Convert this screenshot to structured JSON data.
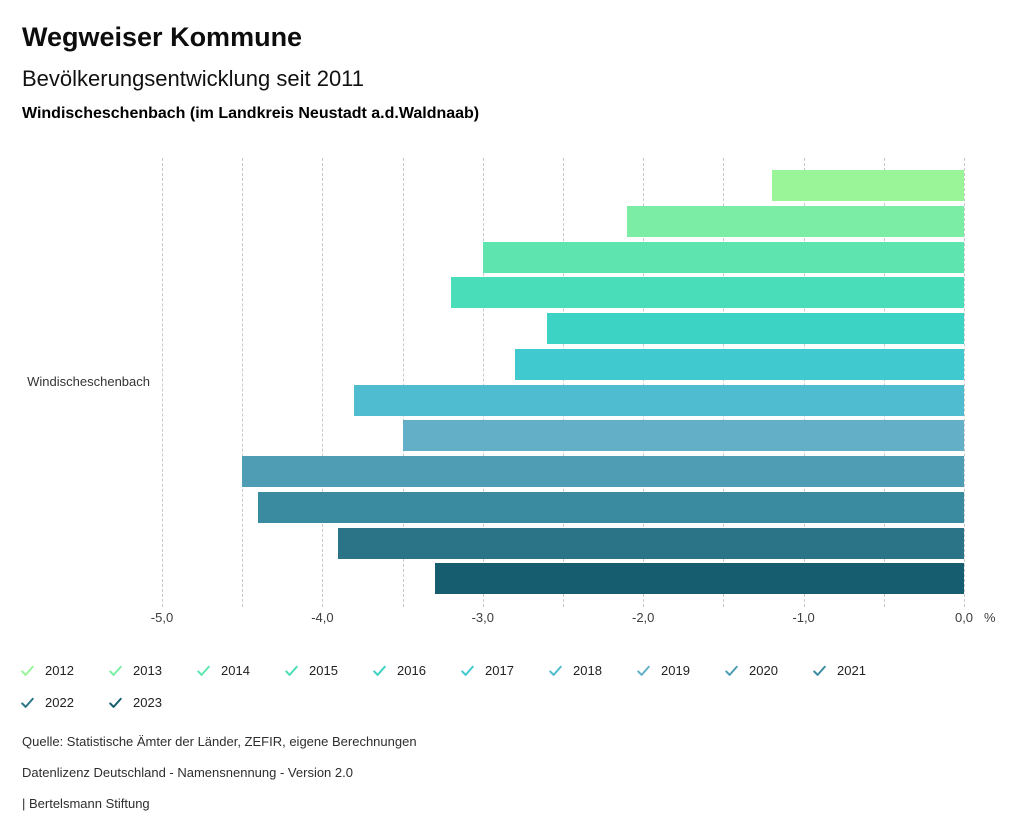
{
  "header": {
    "title": "Wegweiser Kommune",
    "subtitle": "Bevölkerungsentwicklung seit 2011",
    "location": "Windischeschenbach (im Landkreis Neustadt a.d.Waldnaab)"
  },
  "chart_data": {
    "type": "bar",
    "orientation": "horizontal",
    "title": "Bevölkerungsentwicklung seit 2011",
    "category_label": "Windischeschenbach",
    "unit": "%",
    "xlim": [
      -5,
      0
    ],
    "grid_step": 0.5,
    "grid": "dashed-vertical",
    "legend_position": "bottom",
    "x_ticks": [
      {
        "value": -5,
        "label": "-5,0"
      },
      {
        "value": -4,
        "label": "-4,0"
      },
      {
        "value": -3,
        "label": "-3,0"
      },
      {
        "value": -2,
        "label": "-2,0"
      },
      {
        "value": -1,
        "label": "-1,0"
      },
      {
        "value": 0,
        "label": "0,0"
      }
    ],
    "series": [
      {
        "name": "2012",
        "value": -1.2,
        "color": "#99F598"
      },
      {
        "name": "2013",
        "value": -2.1,
        "color": "#7CEDA4"
      },
      {
        "name": "2014",
        "value": -3.0,
        "color": "#5EE5AF"
      },
      {
        "name": "2015",
        "value": -3.2,
        "color": "#4ADDB9"
      },
      {
        "name": "2016",
        "value": -2.6,
        "color": "#3DD3C4"
      },
      {
        "name": "2017",
        "value": -2.8,
        "color": "#40C9CE"
      },
      {
        "name": "2018",
        "value": -3.8,
        "color": "#4FBCCF"
      },
      {
        "name": "2019",
        "value": -3.5,
        "color": "#63AFC8"
      },
      {
        "name": "2020",
        "value": -4.5,
        "color": "#4F9DB4"
      },
      {
        "name": "2021",
        "value": -4.4,
        "color": "#3B8BA0"
      },
      {
        "name": "2022",
        "value": -3.9,
        "color": "#2B7487"
      },
      {
        "name": "2023",
        "value": -3.3,
        "color": "#175D70"
      }
    ]
  },
  "footer": {
    "source": "Quelle: Statistische Ämter der Länder, ZEFIR, eigene Berechnungen",
    "license": "Datenlizenz Deutschland - Namensnennung - Version 2.0",
    "brand": "| Bertelsmann Stiftung"
  }
}
